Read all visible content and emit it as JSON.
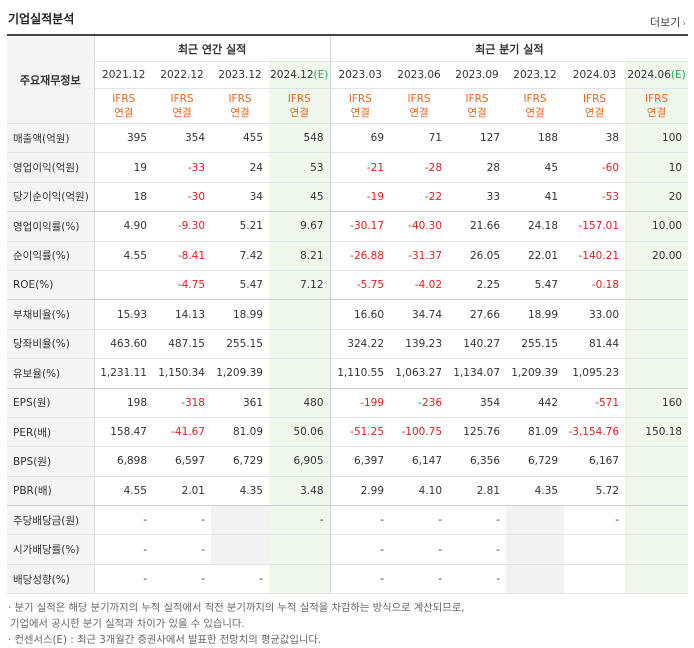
{
  "title": "기업실적분석",
  "more_label": "더보기",
  "header": {
    "label_col": "주요재무정보",
    "annual_group": "최근 연간 실적",
    "quarter_group": "최근 분기 실적",
    "ifrs_line1": "IFRS",
    "ifrs_line2": "연결",
    "estimate_mark": "(E)"
  },
  "periods": [
    {
      "label": "2021.12",
      "est": false
    },
    {
      "label": "2022.12",
      "est": false
    },
    {
      "label": "2023.12",
      "est": false
    },
    {
      "label": "2024.12",
      "est": true
    },
    {
      "label": "2023.03",
      "est": false
    },
    {
      "label": "2023.06",
      "est": false
    },
    {
      "label": "2023.09",
      "est": false
    },
    {
      "label": "2023.12",
      "est": false
    },
    {
      "label": "2024.03",
      "est": false
    },
    {
      "label": "2024.06",
      "est": true
    }
  ],
  "rows": [
    {
      "label": "매출액(억원)",
      "values": [
        "395",
        "354",
        "455",
        "548",
        "69",
        "71",
        "127",
        "188",
        "38",
        "100"
      ]
    },
    {
      "label": "영업이익(억원)",
      "values": [
        "19",
        "-33",
        "24",
        "53",
        "-21",
        "-28",
        "28",
        "45",
        "-60",
        "10"
      ]
    },
    {
      "label": "당기순이익(억원)",
      "values": [
        "18",
        "-30",
        "34",
        "45",
        "-19",
        "-22",
        "33",
        "41",
        "-53",
        "20"
      ],
      "groupEnd": true
    },
    {
      "label": "영업이익률(%)",
      "values": [
        "4.90",
        "-9.30",
        "5.21",
        "9.67",
        "-30.17",
        "-40.30",
        "21.66",
        "24.18",
        "-157.01",
        "10.00"
      ]
    },
    {
      "label": "순이익률(%)",
      "values": [
        "4.55",
        "-8.41",
        "7.42",
        "8.21",
        "-26.88",
        "-31.37",
        "26.05",
        "22.01",
        "-140.21",
        "20.00"
      ]
    },
    {
      "label": "ROE(%)",
      "values": [
        "",
        "-4.75",
        "5.47",
        "7.12",
        "-5.75",
        "-4.02",
        "2.25",
        "5.47",
        "-0.18",
        ""
      ],
      "groupEnd": true
    },
    {
      "label": "부채비율(%)",
      "values": [
        "15.93",
        "14.13",
        "18.99",
        "",
        "16.60",
        "34.74",
        "27.66",
        "18.99",
        "33.00",
        ""
      ]
    },
    {
      "label": "당좌비율(%)",
      "values": [
        "463.60",
        "487.15",
        "255.15",
        "",
        "324.22",
        "139.23",
        "140.27",
        "255.15",
        "81.44",
        ""
      ]
    },
    {
      "label": "유보율(%)",
      "values": [
        "1,231.11",
        "1,150.34",
        "1,209.39",
        "",
        "1,110.55",
        "1,063.27",
        "1,134.07",
        "1,209.39",
        "1,095.23",
        ""
      ],
      "groupEnd": true
    },
    {
      "label": "EPS(원)",
      "values": [
        "198",
        "-318",
        "361",
        "480",
        "-199",
        "-236",
        "354",
        "442",
        "-571",
        "160"
      ]
    },
    {
      "label": "PER(배)",
      "values": [
        "158.47",
        "-41.67",
        "81.09",
        "50.06",
        "-51.25",
        "-100.75",
        "125.76",
        "81.09",
        "-3,154.76",
        "150.18"
      ]
    },
    {
      "label": "BPS(원)",
      "values": [
        "6,898",
        "6,597",
        "6,729",
        "6,905",
        "6,397",
        "6,147",
        "6,356",
        "6,729",
        "6,167",
        ""
      ]
    },
    {
      "label": "PBR(배)",
      "values": [
        "4.55",
        "2.01",
        "4.35",
        "3.48",
        "2.99",
        "4.10",
        "2.81",
        "4.35",
        "5.72",
        ""
      ],
      "groupEnd": true
    },
    {
      "label": "주당배당금(원)",
      "values": [
        "-",
        "-",
        "",
        "-",
        "-",
        "-",
        "-",
        "",
        "-",
        ""
      ],
      "gray": [
        2,
        7
      ]
    },
    {
      "label": "시가배당률(%)",
      "values": [
        "-",
        "-",
        "",
        "",
        "-",
        "-",
        "-",
        "",
        "",
        ""
      ],
      "gray": [
        2,
        7
      ]
    },
    {
      "label": "배당성향(%)",
      "values": [
        "-",
        "-",
        "-",
        "",
        "-",
        "-",
        "-",
        "",
        "",
        ""
      ],
      "gray": [
        7
      ]
    }
  ],
  "notes": [
    "· 분기 실적은 해당 분기까지의 누적 실적에서 직전 분기까지의 누적 실적을 차감하는 방식으로 계산되므로,",
    "  기업에서 공시한 분기 실적과 차이가 있을 수 있습니다.",
    "· 컨센서스(E) : 최근 3개월간 증권사에서 발표한 전망치의 평균값입니다."
  ]
}
